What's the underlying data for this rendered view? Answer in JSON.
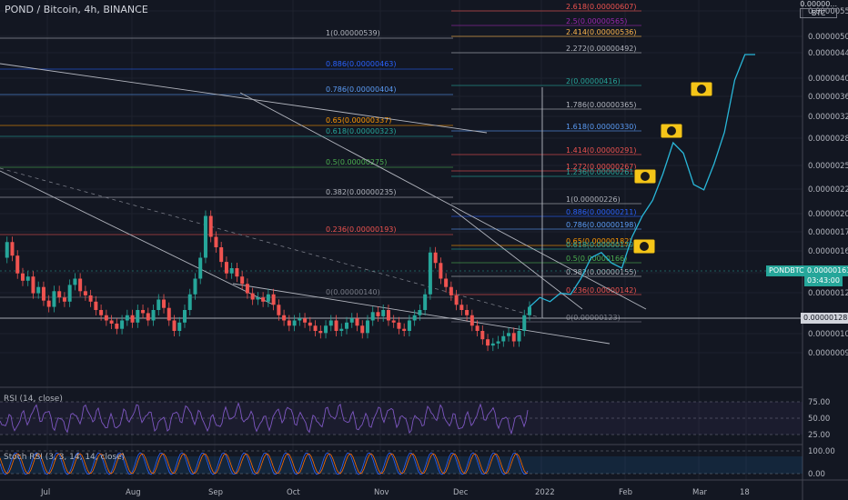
{
  "header": {
    "title": "POND / Bitcoin, 4h, BINANCE",
    "currency_code": "BTC",
    "currency_top": "0.00000..."
  },
  "indicators": {
    "rsi_label": "RSI (14, close)",
    "stoch_label": "Stoch RSI (3, 3, 14, 14, close)",
    "rsi_ticks": [
      "75.00",
      "50.00",
      "25.00"
    ],
    "stoch_ticks": [
      "100.00",
      "0.00"
    ]
  },
  "price_tags": {
    "symbol": "PONDBTC",
    "symbol_price": "0.00000163",
    "countdown": "03:43:00",
    "marker_price": "0.00000128"
  },
  "colors": {
    "background": "#131722",
    "candle_up": "#26a69a",
    "candle_down": "#ef5350",
    "projection": "#29b6d8",
    "rsi_line": "#7e57c2",
    "symbol_tag": "#26a69a",
    "marker_tag": "#d1d4dc"
  },
  "chart_data": {
    "type": "candlestick",
    "price_axis_ticks": [
      "0.00000550",
      "0.00000500",
      "0.00000440",
      "0.00000400",
      "0.00000360",
      "0.00000320",
      "0.00000280",
      "0.00000250",
      "0.00000220",
      "0.00000200",
      "0.00000175",
      "0.00000163",
      "0.00000145",
      "0.00000128",
      "0.00000118",
      "0.00000106",
      "0.00000096"
    ],
    "time_axis_ticks": [
      "Jul",
      "Aug",
      "Sep",
      "Oct",
      "Nov",
      "Dec",
      "2022",
      "Feb",
      "Mar",
      "18"
    ],
    "fib_left": [
      {
        "label": "1(0.00000539)",
        "color": "#b2b5be"
      },
      {
        "label": "0.886(0.00000463)",
        "color": "#2962ff"
      },
      {
        "label": "0.786(0.00000404)",
        "color": "#5b9cf6"
      },
      {
        "label": "0.65(0.00000337)",
        "color": "#ff9800"
      },
      {
        "label": "0.618(0.00000323)",
        "color": "#26a69a"
      },
      {
        "label": "0.5(0.00000275)",
        "color": "#4caf50"
      },
      {
        "label": "0.382(0.00000235)",
        "color": "#b2b5be"
      },
      {
        "label": "0.236(0.00000193)",
        "color": "#ef5350"
      },
      {
        "label": "0(0.00000140)",
        "color": "#787b86"
      }
    ],
    "fib_right": [
      {
        "label": "2.618(0.00000607)",
        "color": "#ef5350"
      },
      {
        "label": "2.5(0.00000565)",
        "color": "#9c27b0"
      },
      {
        "label": "2.414(0.00000536)",
        "color": "#ffb74d"
      },
      {
        "label": "2.272(0.00000492)",
        "color": "#b2b5be"
      },
      {
        "label": "2(0.00000416)",
        "color": "#26a69a"
      },
      {
        "label": "1.786(0.00000365)",
        "color": "#b2b5be"
      },
      {
        "label": "1.618(0.00000330)",
        "color": "#5b9cf6"
      },
      {
        "label": "1.414(0.00000291)",
        "color": "#ef5350"
      },
      {
        "label": "1.272(0.00000267)",
        "color": "#ef5350"
      },
      {
        "label": "1.236(0.00000261)",
        "color": "#26a69a"
      },
      {
        "label": "1(0.00000226)",
        "color": "#b2b5be"
      },
      {
        "label": "0.886(0.00000211)",
        "color": "#2962ff"
      },
      {
        "label": "0.786(0.00000198)",
        "color": "#5b9cf6"
      },
      {
        "label": "0.65(0.00000182)",
        "color": "#ff9800"
      },
      {
        "label": "0.618(0.00000179)",
        "color": "#26a69a"
      },
      {
        "label": "0.5(0.00000166)",
        "color": "#4caf50"
      },
      {
        "label": "0.382(0.00000155)",
        "color": "#b2b5be"
      },
      {
        "label": "0.236(0.00000142)",
        "color": "#ef5350"
      },
      {
        "label": "0(0.00000123)",
        "color": "#787b86"
      }
    ],
    "price_points": [
      210,
      225,
      212,
      195,
      188,
      192,
      176,
      182,
      169,
      163,
      178,
      172,
      168,
      184,
      190,
      178,
      174,
      168,
      160,
      155,
      150,
      147,
      142,
      150,
      155,
      148,
      160,
      157,
      150,
      160,
      170,
      162,
      150,
      140,
      148,
      160,
      175,
      190,
      210,
      250,
      230,
      220,
      206,
      195,
      200,
      192,
      185,
      176,
      170,
      172,
      168,
      175,
      165,
      155,
      150,
      145,
      150,
      152,
      148,
      145,
      140,
      138,
      145,
      150,
      140,
      142,
      148,
      152,
      145,
      138,
      150,
      158,
      154,
      160,
      150,
      148,
      142,
      140,
      150,
      155,
      160,
      175,
      215,
      205,
      190,
      182,
      174,
      165,
      160,
      155,
      145,
      140,
      132,
      126,
      128,
      130,
      135,
      138,
      130,
      140,
      155,
      163
    ],
    "projection_points": [
      163,
      172,
      168,
      176,
      175,
      190,
      210,
      215,
      205,
      200,
      230,
      250,
      265,
      290,
      320,
      310,
      280,
      275,
      300,
      330,
      380,
      420,
      470
    ]
  }
}
